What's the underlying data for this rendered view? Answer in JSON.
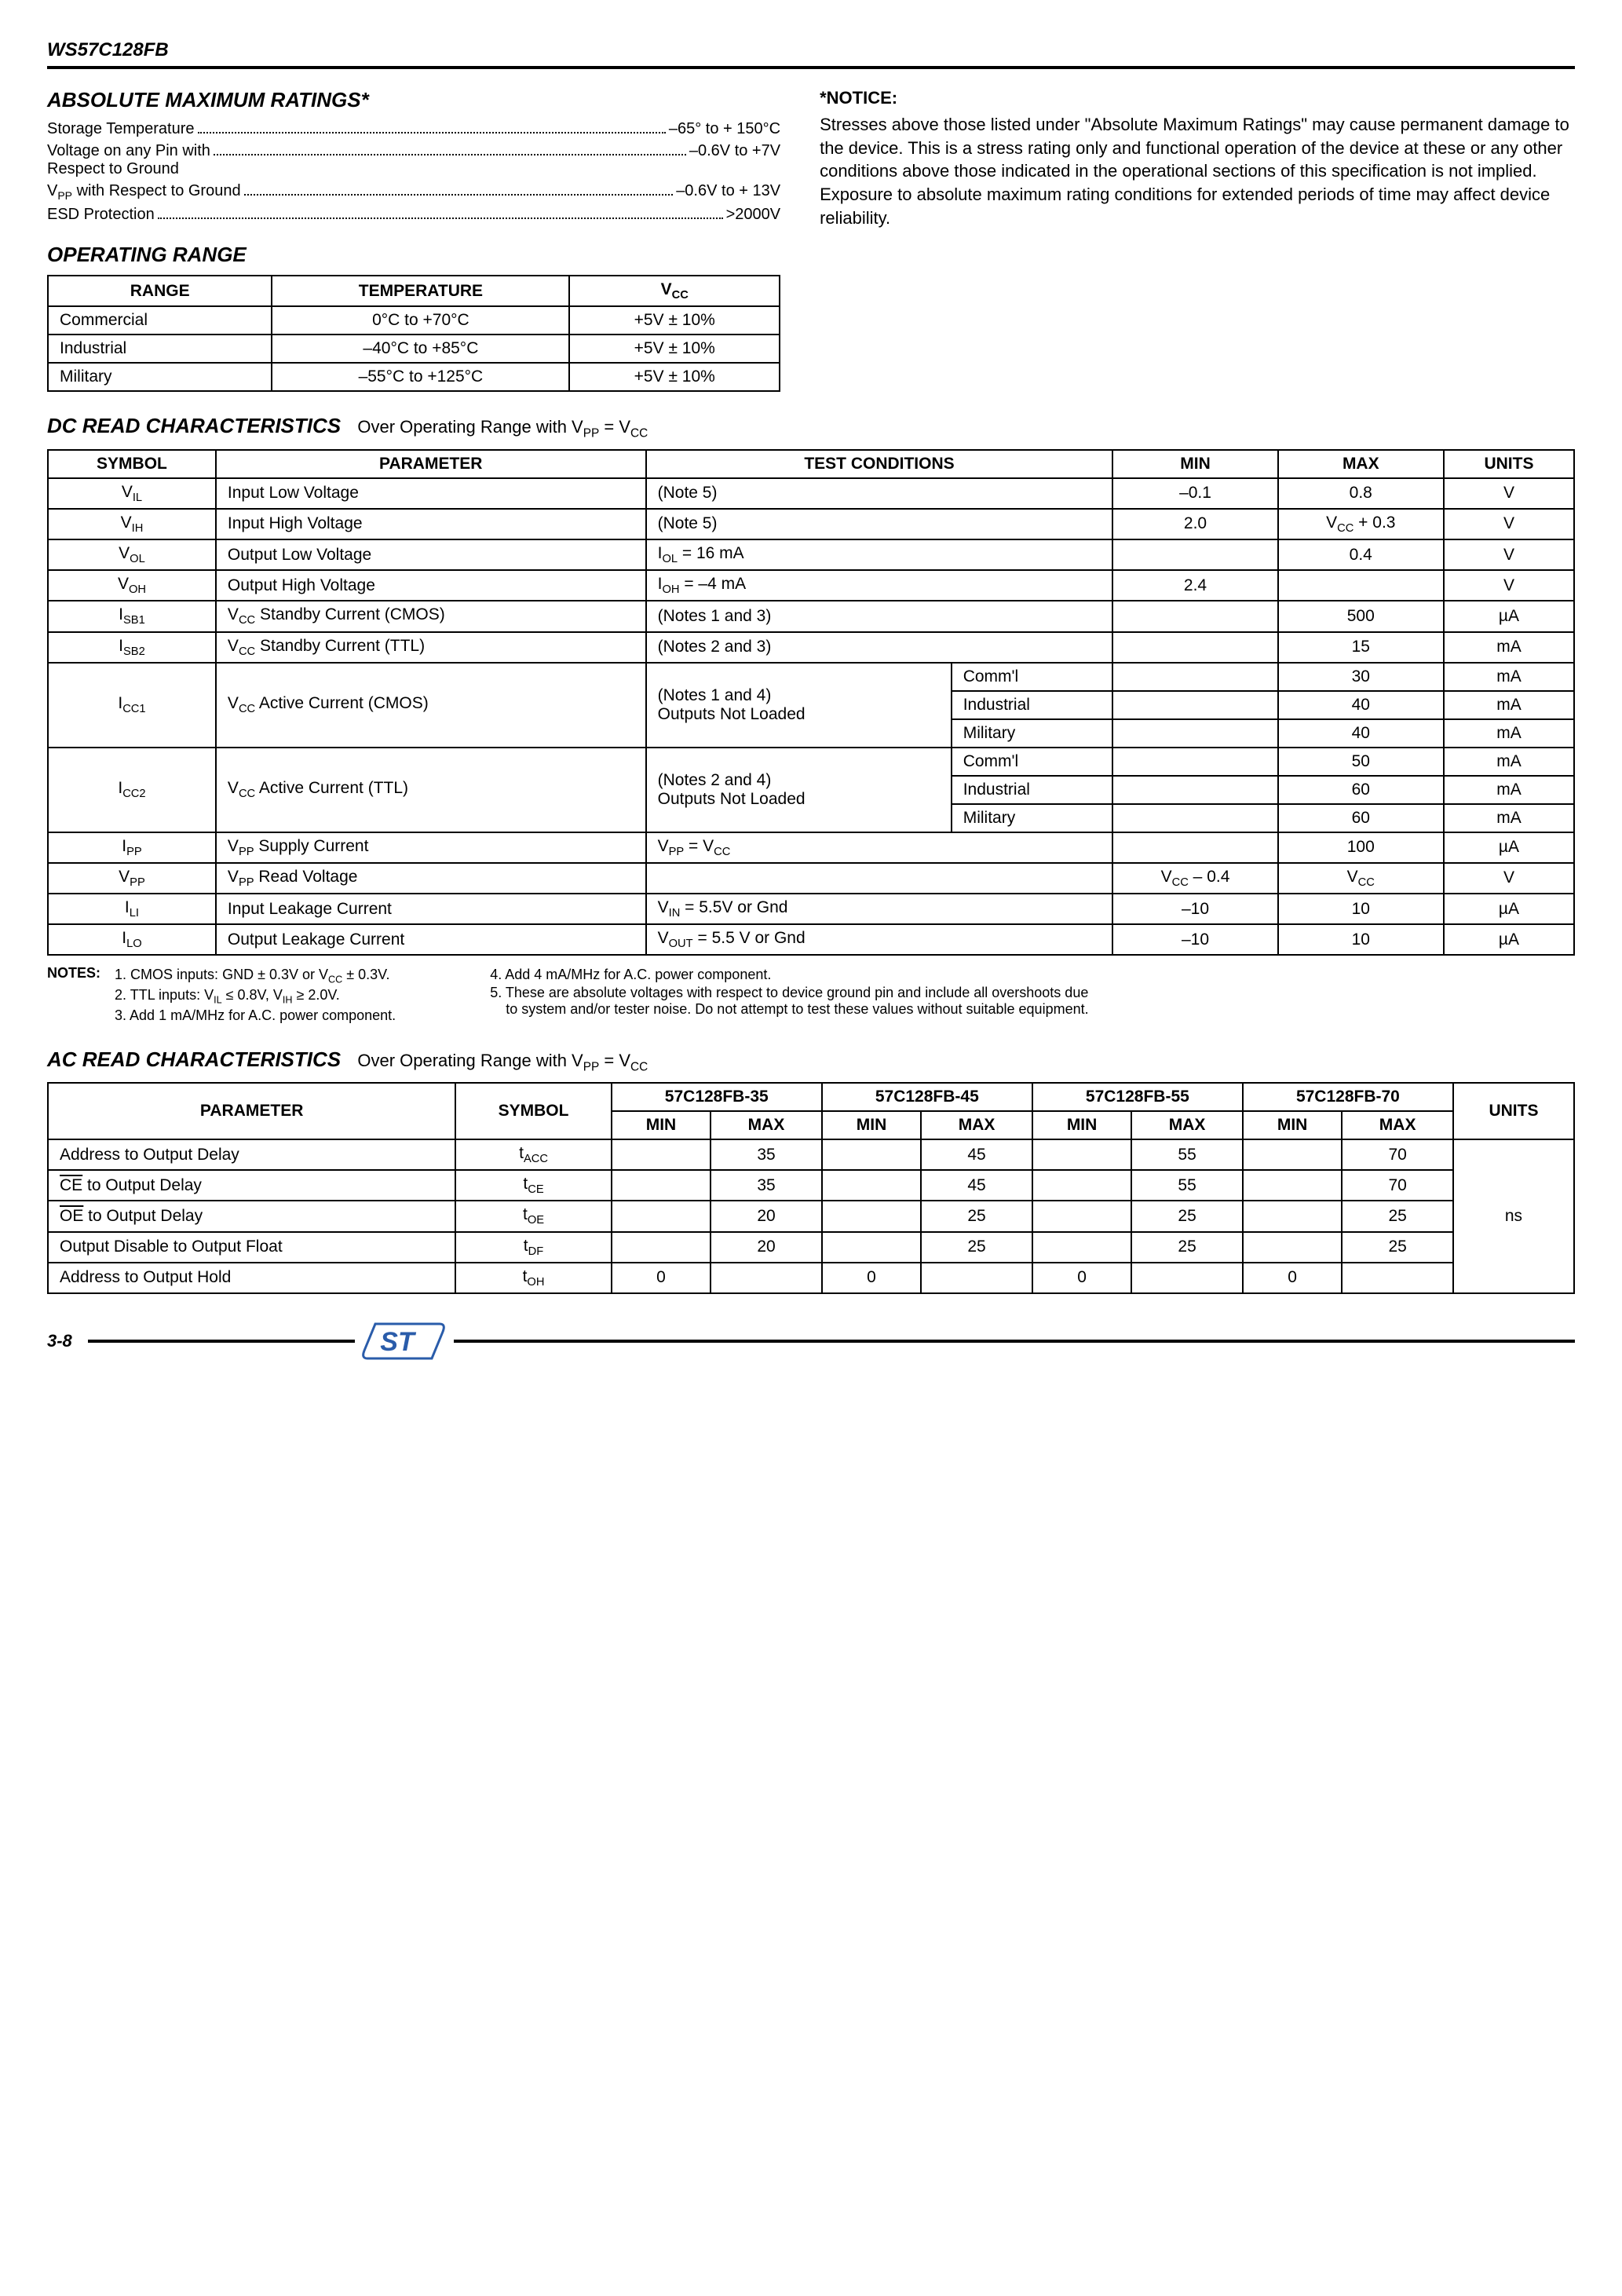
{
  "header": {
    "part_number": "WS57C128FB"
  },
  "absolute_max": {
    "title": "ABSOLUTE MAXIMUM RATINGS*",
    "rows": [
      {
        "label": "Storage Temperature",
        "value": "–65° to + 150°C"
      },
      {
        "label": "Voltage on any Pin with\nRespect to Ground",
        "value": "–0.6V to +7V"
      },
      {
        "label_html": "V<sub>PP</sub> with Respect to Ground",
        "value": "–0.6V to + 13V"
      },
      {
        "label": "ESD Protection",
        "value": ">2000V"
      }
    ]
  },
  "notice": {
    "title": "*NOTICE:",
    "body": "Stresses above those listed under \"Absolute Maximum Ratings\" may cause permanent damage to the device. This is a stress rating only and functional operation of the device at these or any other conditions above those indicated in the operational sections of this specification is not implied. Exposure to absolute maximum rating conditions for extended periods of time may affect device reliability."
  },
  "operating_range": {
    "title": "OPERATING RANGE",
    "headers": [
      "RANGE",
      "TEMPERATURE",
      "V<sub>CC</sub>"
    ],
    "rows": [
      [
        "Commercial",
        "0°C to +70°C",
        "+5V ± 10%"
      ],
      [
        "Industrial",
        "–40°C to +85°C",
        "+5V ± 10%"
      ],
      [
        "Military",
        "–55°C to +125°C",
        "+5V ± 10%"
      ]
    ]
  },
  "dc": {
    "title": "DC READ CHARACTERISTICS",
    "cond": "Over Operating Range with V<sub>PP</sub> = V<sub>CC</sub>",
    "headers": [
      "SYMBOL",
      "PARAMETER",
      "TEST CONDITIONS",
      "MIN",
      "MAX",
      "UNITS"
    ],
    "rows": [
      {
        "sym": "V<sub>IL</sub>",
        "param": "Input Low Voltage",
        "tc": "(Note 5)",
        "min": "–0.1",
        "max": "0.8",
        "u": "V"
      },
      {
        "sym": "V<sub>IH</sub>",
        "param": "Input High Voltage",
        "tc": "(Note 5)",
        "min": "2.0",
        "max": "V<sub>CC</sub> + 0.3",
        "u": "V"
      },
      {
        "sym": "V<sub>OL</sub>",
        "param": "Output Low Voltage",
        "tc": "I<sub>OL</sub> = 16 mA",
        "min": "",
        "max": "0.4",
        "u": "V"
      },
      {
        "sym": "V<sub>OH</sub>",
        "param": "Output High Voltage",
        "tc": "I<sub>OH</sub> = –4 mA",
        "min": "2.4",
        "max": "",
        "u": "V"
      },
      {
        "sym": "I<sub>SB1</sub>",
        "param": "V<sub>CC</sub> Standby Current (CMOS)",
        "tc": "(Notes 1 and 3)",
        "min": "",
        "max": "500",
        "u": "µA"
      },
      {
        "sym": "I<sub>SB2</sub>",
        "param": "V<sub>CC</sub> Standby Current (TTL)",
        "tc": "(Notes 2 and 3)",
        "min": "",
        "max": "15",
        "u": "mA"
      }
    ],
    "icc1": {
      "sym": "I<sub>CC1</sub>",
      "param": "V<sub>CC</sub> Active Current (CMOS)",
      "tc": "(Notes 1 and 4)<br>Outputs Not Loaded",
      "sub": [
        {
          "range": "Comm'l",
          "min": "",
          "max": "30",
          "u": "mA"
        },
        {
          "range": "Industrial",
          "min": "",
          "max": "40",
          "u": "mA"
        },
        {
          "range": "Military",
          "min": "",
          "max": "40",
          "u": "mA"
        }
      ]
    },
    "icc2": {
      "sym": "I<sub>CC2</sub>",
      "param": "V<sub>CC</sub> Active Current (TTL)",
      "tc": "(Notes 2 and 4)<br>Outputs Not Loaded",
      "sub": [
        {
          "range": "Comm'l",
          "min": "",
          "max": "50",
          "u": "mA"
        },
        {
          "range": "Industrial",
          "min": "",
          "max": "60",
          "u": "mA"
        },
        {
          "range": "Military",
          "min": "",
          "max": "60",
          "u": "mA"
        }
      ]
    },
    "tail": [
      {
        "sym": "I<sub>PP</sub>",
        "param": "V<sub>PP</sub> Supply Current",
        "tc": "V<sub>PP</sub> = V<sub>CC</sub>",
        "min": "",
        "max": "100",
        "u": "µA"
      },
      {
        "sym": "V<sub>PP</sub>",
        "param": "V<sub>PP</sub> Read Voltage",
        "tc": "",
        "min": "V<sub>CC</sub> – 0.4",
        "max": "V<sub>CC</sub>",
        "u": "V"
      },
      {
        "sym": "I<sub>LI</sub>",
        "param": "Input Leakage Current",
        "tc": "V<sub>IN</sub> = 5.5V or Gnd",
        "min": "–10",
        "max": "10",
        "u": "µA"
      },
      {
        "sym": "I<sub>LO</sub>",
        "param": "Output Leakage Current",
        "tc": "V<sub>OUT</sub> = 5.5 V or Gnd",
        "min": "–10",
        "max": "10",
        "u": "µA"
      }
    ]
  },
  "notes": {
    "label": "NOTES:",
    "left": [
      "1. CMOS inputs: GND ± 0.3V or V<sub>CC</sub> ± 0.3V.",
      "2. TTL inputs: V<sub>IL</sub> ≤ 0.8V, V<sub>IH</sub> ≥ 2.0V.",
      "3. Add 1 mA/MHz for A.C. power component."
    ],
    "right": [
      "4. Add 4 mA/MHz for A.C. power component.",
      "5. These are absolute voltages with respect to device ground pin and include all overshoots due to system and/or tester noise. Do not attempt to test these values without suitable equipment."
    ]
  },
  "ac": {
    "title": "AC READ CHARACTERISTICS",
    "cond": "Over Operating Range with V<sub>PP</sub> = V<sub>CC</sub>",
    "parts": [
      "57C128FB-35",
      "57C128FB-45",
      "57C128FB-55",
      "57C128FB-70"
    ],
    "headers": [
      "PARAMETER",
      "SYMBOL",
      "MIN",
      "MAX",
      "MIN",
      "MAX",
      "MIN",
      "MAX",
      "MIN",
      "MAX",
      "UNITS"
    ],
    "rows": [
      {
        "param": "Address to Output Delay",
        "sym": "t<sub>ACC</sub>",
        "v": [
          "",
          "35",
          "",
          "45",
          "",
          "55",
          "",
          "70"
        ]
      },
      {
        "param": "<span class=\"overline\">CE</span> to Output Delay",
        "sym": "t<sub>CE</sub>",
        "v": [
          "",
          "35",
          "",
          "45",
          "",
          "55",
          "",
          "70"
        ]
      },
      {
        "param": "<span class=\"overline\">OE</span> to Output Delay",
        "sym": "t<sub>OE</sub>",
        "v": [
          "",
          "20",
          "",
          "25",
          "",
          "25",
          "",
          "25"
        ]
      },
      {
        "param": "Output Disable to Output Float",
        "sym": "t<sub>DF</sub>",
        "v": [
          "",
          "20",
          "",
          "25",
          "",
          "25",
          "",
          "25"
        ]
      },
      {
        "param": "Address to Output Hold",
        "sym": "t<sub>OH</sub>",
        "v": [
          "0",
          "",
          "0",
          "",
          "0",
          "",
          "0",
          ""
        ]
      }
    ],
    "units": "ns"
  },
  "footer": {
    "page": "3-8"
  }
}
